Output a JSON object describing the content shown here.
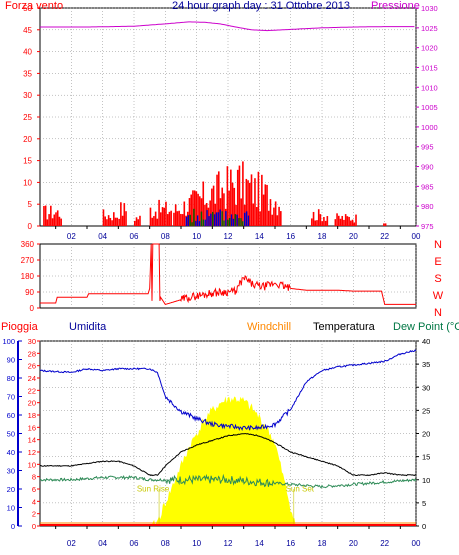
{
  "header": {
    "wind_label": "Forza vento",
    "title": "24 hour graph day : 31 Ottobre 2013",
    "pressure_label": "Pressione"
  },
  "colors": {
    "red": "#ff0000",
    "magenta": "#cc00cc",
    "navy": "#000099",
    "blue": "#0000cc",
    "green": "#006600",
    "dewgreen": "#2e8b57",
    "orange": "#ff8800",
    "yellow": "#ffff00",
    "sunlabel": "#c8c800",
    "teal": "#007744",
    "grid": "#888888"
  },
  "chart_data": [
    {
      "type": "bar",
      "name": "wind",
      "title": "24 hour graph day : 31 Ottobre 2013",
      "left_axis_label": "Forza vento",
      "left_ticks": [
        "0",
        "5",
        "10",
        "15",
        "20",
        "25",
        "30",
        "35",
        "40",
        "45",
        "50"
      ],
      "right_axis_label": "Pressione",
      "right_ticks": [
        "975",
        "980",
        "985",
        "990",
        "995",
        "1000",
        "1005",
        "1010",
        "1015",
        "1020",
        "1025",
        "1030"
      ],
      "x_ticks": [
        "02",
        "04",
        "06",
        "08",
        "10",
        "12",
        "14",
        "16",
        "18",
        "20",
        "22",
        "00"
      ],
      "xlim": [
        0,
        24
      ],
      "ylim_left": [
        0,
        50
      ],
      "ylim_right": [
        975,
        1030
      ],
      "pressure": {
        "x": [
          0,
          3,
          6,
          8,
          9.5,
          10.5,
          11.5,
          12.5,
          13.5,
          14.5,
          16,
          18,
          20,
          22,
          24
        ],
        "y": [
          1025.2,
          1025.2,
          1025.4,
          1026.0,
          1026.5,
          1026.4,
          1026.0,
          1025.2,
          1024.5,
          1024.3,
          1024.6,
          1025.0,
          1025.2,
          1025.3,
          1025.3
        ]
      },
      "gust_clusters": [
        {
          "from": 0.2,
          "to": 1.4,
          "max": 5
        },
        {
          "from": 4.0,
          "to": 4.9,
          "max": 4
        },
        {
          "from": 5.0,
          "to": 5.5,
          "max": 6
        },
        {
          "from": 6.0,
          "to": 6.4,
          "max": 3
        },
        {
          "from": 7.0,
          "to": 8.4,
          "max": 6
        },
        {
          "from": 8.5,
          "to": 15.4,
          "max": 16
        },
        {
          "from": 17.3,
          "to": 18.3,
          "max": 4
        },
        {
          "from": 18.8,
          "to": 20.2,
          "max": 3
        },
        {
          "from": 21.9,
          "to": 22.1,
          "max": 2
        }
      ],
      "speed_clusters": [
        {
          "from": 9.3,
          "to": 13.3,
          "max": 4
        }
      ]
    },
    {
      "type": "line",
      "name": "wind-direction",
      "left_ticks": [
        "0",
        "90",
        "180",
        "270",
        "360"
      ],
      "right_ticks": [
        "N",
        "W",
        "S",
        "E",
        "N"
      ],
      "x_ticks": [
        "02",
        "04",
        "06",
        "08",
        "10",
        "12",
        "14",
        "16",
        "18",
        "20",
        "22",
        "00"
      ],
      "xlim": [
        0,
        24
      ],
      "ylim": [
        0,
        360
      ],
      "direction": {
        "x": [
          0,
          1.0,
          1.1,
          3.0,
          3.1,
          6.9,
          7.0,
          7.1,
          7.15,
          7.2,
          7.6,
          7.65,
          7.7,
          8.0,
          9.5,
          11.0,
          12.5,
          13.0,
          13.6,
          14.3,
          15.0,
          16.0,
          17.0,
          18.0,
          19.0,
          20.0,
          21.0,
          21.8,
          22.0,
          24.0
        ],
        "y": [
          28,
          28,
          60,
          60,
          80,
          80,
          110,
          360,
          40,
          360,
          360,
          40,
          60,
          20,
          60,
          85,
          95,
          170,
          130,
          120,
          140,
          110,
          100,
          100,
          100,
          95,
          95,
          95,
          20,
          20
        ]
      }
    },
    {
      "type": "line",
      "name": "weather",
      "legend": [
        "Pioggia",
        "Umidita",
        "Windchill",
        "Temperatura",
        "Dew Point (°C"
      ],
      "humidity_ticks": [
        "0",
        "10",
        "20",
        "30",
        "40",
        "50",
        "60",
        "70",
        "80",
        "90",
        "100"
      ],
      "rain_ticks": [
        "0",
        "2",
        "4",
        "6",
        "8",
        "10",
        "12",
        "14",
        "16",
        "18",
        "20",
        "22",
        "24",
        "26",
        "28",
        "30"
      ],
      "temp_ticks": [
        "0",
        "5",
        "10",
        "15",
        "20",
        "25",
        "30",
        "35",
        "40"
      ],
      "x_ticks": [
        "02",
        "04",
        "06",
        "08",
        "10",
        "12",
        "14",
        "16",
        "18",
        "20",
        "22",
        "00"
      ],
      "xlim": [
        0,
        24
      ],
      "humidity_lim": [
        0,
        100
      ],
      "temp_lim": [
        0,
        40
      ],
      "humidity": {
        "x": [
          0,
          2,
          3,
          4,
          5,
          6,
          7,
          7.5,
          8,
          9,
          10,
          11,
          12,
          13,
          14,
          15,
          16,
          17,
          18,
          19,
          20,
          21,
          22,
          23,
          24
        ],
        "y": [
          84,
          83,
          85,
          84,
          85,
          85,
          85,
          83,
          70,
          62,
          58,
          55,
          54,
          53,
          53,
          55,
          63,
          78,
          84,
          86,
          87,
          88,
          89,
          93,
          95
        ]
      },
      "temperature": {
        "x": [
          0,
          1,
          2,
          3,
          4,
          5,
          6,
          7,
          7.5,
          8,
          9,
          10,
          11,
          12,
          13,
          14,
          15,
          16,
          17,
          18,
          19,
          20,
          21,
          22,
          23,
          24
        ],
        "y": [
          13,
          13,
          13,
          13.5,
          14,
          14,
          13,
          11,
          11,
          13,
          16,
          17.5,
          18.5,
          19.5,
          20,
          19.5,
          18,
          16,
          15,
          14,
          13,
          11,
          11,
          11.5,
          11,
          11
        ]
      },
      "dew_point": {
        "x": [
          0,
          2,
          4,
          5,
          6,
          7,
          8,
          10,
          12,
          14,
          16,
          18,
          20,
          22,
          24
        ],
        "y": [
          10,
          10,
          10.5,
          10.5,
          10.5,
          10,
          10,
          10,
          10,
          9.5,
          9,
          8.5,
          9,
          9.5,
          10
        ]
      },
      "solar": {
        "x": [
          0,
          7.2,
          7.5,
          8,
          8.5,
          9,
          9.5,
          10,
          10.5,
          11,
          11.5,
          12,
          12.5,
          13,
          13.5,
          14,
          14.5,
          15,
          15.5,
          16,
          16.3,
          24
        ],
        "y": [
          0,
          0,
          1,
          5,
          9,
          13,
          17,
          20,
          23,
          25,
          26.5,
          27.5,
          27.5,
          27,
          25.5,
          23.5,
          21,
          18,
          11,
          4,
          0,
          0
        ]
      },
      "annotations": [
        {
          "label": "Sun Rise",
          "x": 7.6
        },
        {
          "label": "Sun Set",
          "x": 16.2
        }
      ]
    }
  ]
}
